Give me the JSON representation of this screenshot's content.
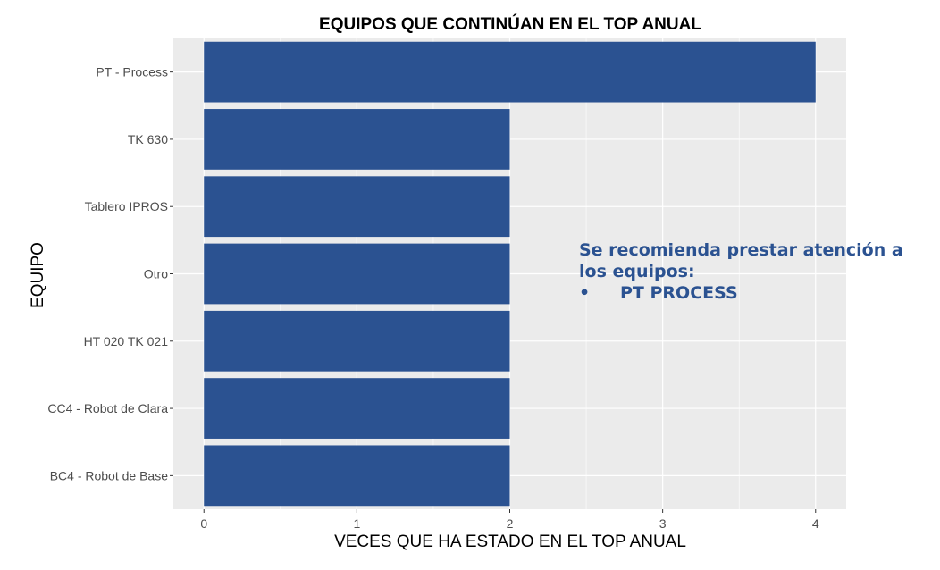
{
  "chart_data": {
    "type": "bar",
    "orientation": "horizontal",
    "title": "EQUIPOS QUE CONTINÚAN EN EL TOP ANUAL",
    "xlabel": "VECES QUE HA ESTADO EN EL TOP ANUAL",
    "ylabel": "EQUIPO",
    "categories": [
      "PT - Process",
      "TK 630",
      "Tablero IPROS",
      "Otro",
      "HT 020 TK 021",
      "CC4 - Robot de Clara",
      "BC4 - Robot de Base"
    ],
    "values": [
      4,
      2,
      2,
      2,
      2,
      2,
      2
    ],
    "xlim": [
      -0.2,
      4.2
    ],
    "xticks": [
      0,
      1,
      2,
      3,
      4
    ],
    "grid": true,
    "bar_color": "#2b5291",
    "panel_color": "#ebebeb"
  },
  "annotation": {
    "line1": "Se recomienda prestar atención a los equipos:",
    "bullet": "•",
    "item": "PT PROCESS",
    "color": "#2b5291"
  }
}
